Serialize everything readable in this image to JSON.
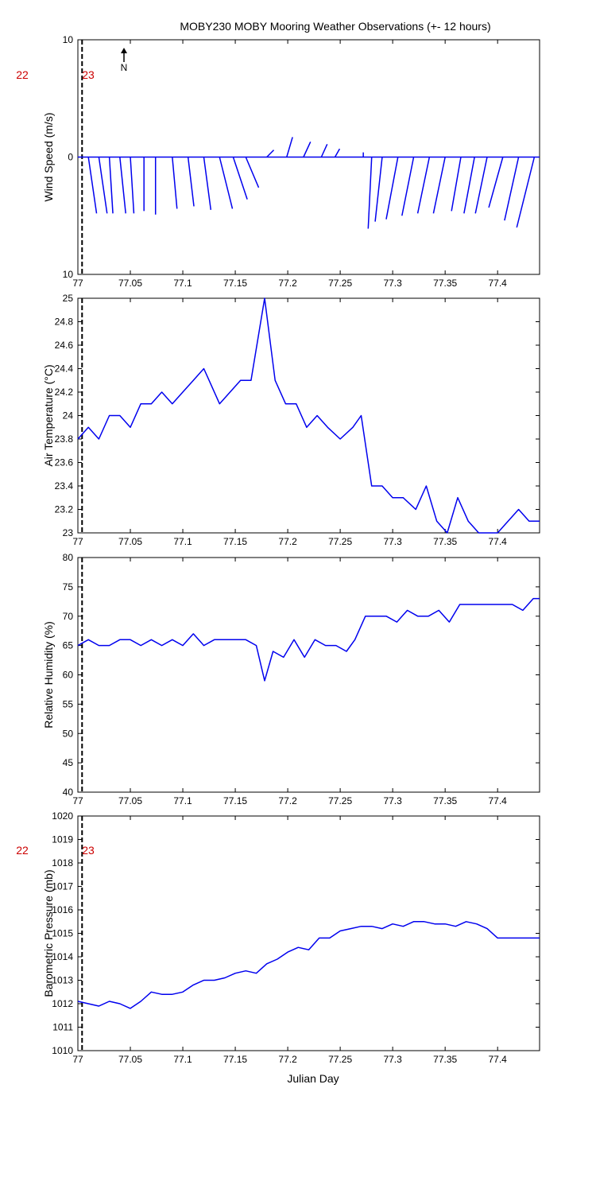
{
  "title": "MOBY230 MOBY Mooring Weather Observations (+- 12 hours)",
  "xlabel": "Julian Day",
  "colors": {
    "series": "#0000ee",
    "hour_marker": "#cc0000",
    "axes": "#000000"
  },
  "north_label": "N",
  "hour_labels": [
    "22",
    "23"
  ],
  "x_ticks": [
    "77",
    "77.05",
    "77.1",
    "77.15",
    "77.2",
    "77.25",
    "77.3",
    "77.35",
    "77.4"
  ],
  "chart_data": [
    {
      "type": "line",
      "name": "wind",
      "ylabel": "Wind Speed (m/s)",
      "xlim": [
        77,
        77.44
      ],
      "ylim": [
        -10,
        10
      ],
      "y_tick_values": [
        10,
        0,
        -10
      ],
      "y_tick_labels": [
        "10",
        "0",
        "10"
      ],
      "note": "wind stick vectors: dx,dy in m/s from x position",
      "x": [
        77.01,
        77.02,
        77.03,
        77.04,
        77.05,
        77.063,
        77.074,
        77.09,
        77.105,
        77.12,
        77.135,
        77.148,
        77.16,
        77.18,
        77.199,
        77.215,
        77.232,
        77.245,
        77.272,
        77.28,
        77.29,
        77.305,
        77.32,
        77.335,
        77.35,
        77.365,
        77.378,
        77.39,
        77.405,
        77.42,
        77.435
      ],
      "u": [
        0.7,
        0.7,
        0.3,
        0.5,
        0.3,
        0,
        0,
        0.4,
        0.5,
        0.6,
        1.1,
        1.2,
        1.1,
        0.6,
        0.5,
        0.6,
        0.5,
        0.4,
        0,
        -0.3,
        -0.6,
        -1.0,
        -1.0,
        -1.0,
        -1.0,
        -0.8,
        -0.9,
        -1.0,
        -1.2,
        -1.2,
        -1.5
      ],
      "v": [
        -4.8,
        -4.8,
        -4.8,
        -4.8,
        -4.8,
        -4.6,
        -4.9,
        -4.4,
        -4.2,
        -4.5,
        -4.4,
        -3.6,
        -2.6,
        0.6,
        1.7,
        1.3,
        1.1,
        0.7,
        0.4,
        -6.1,
        -5.5,
        -5.3,
        -5.0,
        -4.8,
        -4.8,
        -4.6,
        -4.8,
        -4.8,
        -4.3,
        -5.4,
        -6.0
      ]
    },
    {
      "type": "line",
      "name": "air_temperature",
      "ylabel": "Air Temperature (°C)",
      "xlim": [
        77,
        77.44
      ],
      "ylim": [
        23,
        25
      ],
      "y_tick_values": [
        23,
        23.2,
        23.4,
        23.6,
        23.8,
        24,
        24.2,
        24.4,
        24.6,
        24.8,
        25
      ],
      "y_tick_labels": [
        "23",
        "23.2",
        "23.4",
        "23.6",
        "23.8",
        "24",
        "24.2",
        "24.4",
        "24.6",
        "24.8",
        "25"
      ],
      "x": [
        77.0,
        77.01,
        77.02,
        77.03,
        77.04,
        77.05,
        77.06,
        77.07,
        77.08,
        77.09,
        77.1,
        77.11,
        77.12,
        77.125,
        77.135,
        77.145,
        77.155,
        77.165,
        77.178,
        77.188,
        77.198,
        77.208,
        77.218,
        77.228,
        77.238,
        77.25,
        77.262,
        77.27,
        77.28,
        77.29,
        77.3,
        77.31,
        77.322,
        77.332,
        77.342,
        77.352,
        77.362,
        77.372,
        77.382,
        77.39,
        77.4,
        77.41,
        77.42,
        77.43,
        77.44
      ],
      "values": [
        23.8,
        23.9,
        23.8,
        24.0,
        24.0,
        23.9,
        24.1,
        24.1,
        24.2,
        24.1,
        24.2,
        24.3,
        24.4,
        24.3,
        24.1,
        24.2,
        24.3,
        24.3,
        25.0,
        24.3,
        24.1,
        24.1,
        23.9,
        24.0,
        23.9,
        23.8,
        23.9,
        24.0,
        23.4,
        23.4,
        23.3,
        23.3,
        23.2,
        23.4,
        23.1,
        23.0,
        23.3,
        23.1,
        23.0,
        23.0,
        23.0,
        23.1,
        23.2,
        23.1,
        23.1
      ]
    },
    {
      "type": "line",
      "name": "relative_humidity",
      "ylabel": "Relative Humidity (%)",
      "xlim": [
        77,
        77.44
      ],
      "ylim": [
        40,
        80
      ],
      "y_tick_values": [
        40,
        45,
        50,
        55,
        60,
        65,
        70,
        75,
        80
      ],
      "y_tick_labels": [
        "40",
        "45",
        "50",
        "55",
        "60",
        "65",
        "70",
        "75",
        "80"
      ],
      "x": [
        77.0,
        77.01,
        77.02,
        77.03,
        77.04,
        77.05,
        77.06,
        77.07,
        77.08,
        77.09,
        77.1,
        77.11,
        77.12,
        77.13,
        77.14,
        77.15,
        77.16,
        77.17,
        77.178,
        77.186,
        77.196,
        77.206,
        77.216,
        77.226,
        77.236,
        77.246,
        77.256,
        77.264,
        77.274,
        77.284,
        77.294,
        77.304,
        77.314,
        77.324,
        77.334,
        77.344,
        77.354,
        77.364,
        77.374,
        77.384,
        77.394,
        77.404,
        77.414,
        77.424,
        77.434,
        77.44
      ],
      "values": [
        65,
        66,
        65,
        65,
        66,
        66,
        65,
        66,
        65,
        66,
        65,
        67,
        65,
        66,
        66,
        66,
        66,
        65,
        59,
        64,
        63,
        66,
        63,
        66,
        65,
        65,
        64,
        66,
        70,
        70,
        70,
        69,
        71,
        70,
        70,
        71,
        69,
        72,
        72,
        72,
        72,
        72,
        72,
        71,
        73,
        73
      ]
    },
    {
      "type": "line",
      "name": "barometric_pressure",
      "ylabel": "Barometric Pressure (mb)",
      "xlim": [
        77,
        77.44
      ],
      "ylim": [
        1010,
        1020
      ],
      "y_tick_values": [
        1010,
        1011,
        1012,
        1013,
        1014,
        1015,
        1016,
        1017,
        1018,
        1019,
        1020
      ],
      "y_tick_labels": [
        "1010",
        "1011",
        "1012",
        "1013",
        "1014",
        "1015",
        "1016",
        "1017",
        "1018",
        "1019",
        "1020"
      ],
      "x": [
        77.0,
        77.01,
        77.02,
        77.03,
        77.04,
        77.05,
        77.06,
        77.07,
        77.08,
        77.09,
        77.1,
        77.11,
        77.12,
        77.13,
        77.14,
        77.15,
        77.16,
        77.17,
        77.18,
        77.19,
        77.2,
        77.21,
        77.22,
        77.23,
        77.24,
        77.25,
        77.26,
        77.27,
        77.28,
        77.29,
        77.3,
        77.31,
        77.32,
        77.33,
        77.34,
        77.35,
        77.36,
        77.37,
        77.38,
        77.39,
        77.4,
        77.41,
        77.42,
        77.43,
        77.44
      ],
      "values": [
        1012.1,
        1012.0,
        1011.9,
        1012.1,
        1012.0,
        1011.8,
        1012.1,
        1012.5,
        1012.4,
        1012.4,
        1012.5,
        1012.8,
        1013.0,
        1013.0,
        1013.1,
        1013.3,
        1013.4,
        1013.3,
        1013.7,
        1013.9,
        1014.2,
        1014.4,
        1014.3,
        1014.8,
        1014.8,
        1015.1,
        1015.2,
        1015.3,
        1015.3,
        1015.2,
        1015.4,
        1015.3,
        1015.5,
        1015.5,
        1015.4,
        1015.4,
        1015.3,
        1015.5,
        1015.4,
        1015.2,
        1014.8,
        1014.8,
        1014.8,
        1014.8,
        1014.8
      ]
    }
  ]
}
